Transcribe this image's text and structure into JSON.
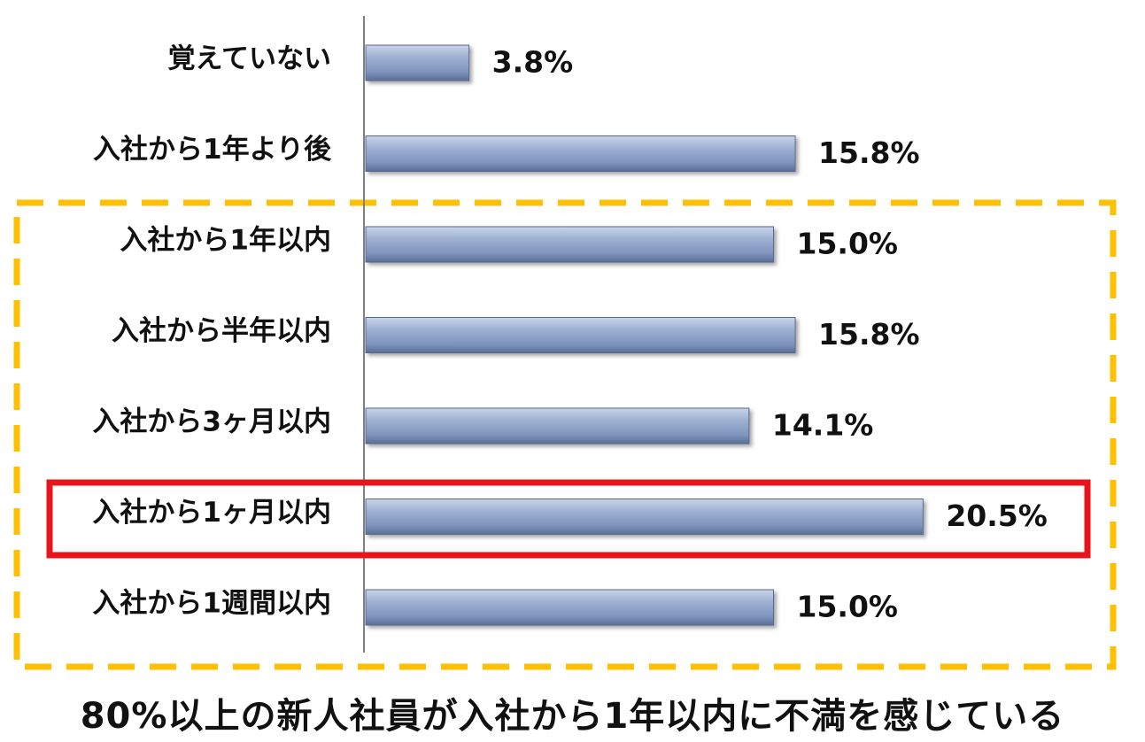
{
  "chart_data": {
    "type": "bar",
    "orientation": "horizontal",
    "categories": [
      "覚えていない",
      "入社から1年より後",
      "入社から1年以内",
      "入社から半年以内",
      "入社から3ヶ月以内",
      "入社から1ヶ月以内",
      "入社から1週間以内"
    ],
    "values": [
      3.8,
      15.8,
      15.0,
      15.8,
      14.1,
      20.5,
      15.0
    ],
    "value_labels": [
      "3.8%",
      "15.8%",
      "15.0%",
      "15.8%",
      "14.1%",
      "20.5%",
      "15.0%"
    ],
    "xlim": [
      0,
      24
    ],
    "grid": false,
    "bar_color": "#8ea3c8",
    "highlight_group_color": "#ffc000",
    "highlight_bar_color": "#e8141b",
    "highlighted_category": "入社から1ヶ月以内"
  },
  "caption": "80%以上の新人社員が入社から1年以内に不満を感じている"
}
